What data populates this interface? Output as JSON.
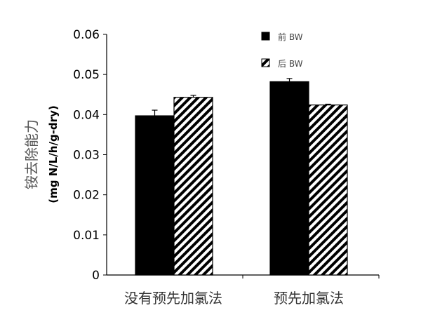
{
  "chart_data": {
    "type": "bar",
    "categories": [
      "没有预先加氯法",
      "预先加氯法"
    ],
    "series": [
      {
        "name": "前 BW",
        "values": [
          0.0397,
          0.0482
        ],
        "error": [
          0.0014,
          0.0008
        ],
        "fill": "solid",
        "color": "#000000"
      },
      {
        "name": "后 BW",
        "values": [
          0.0443,
          0.0424
        ],
        "error": [
          0.0005,
          0.0002
        ],
        "fill": "hatched",
        "color": "#000000"
      }
    ],
    "ylabel_line1": "铵去除能力",
    "ylabel_line2": "(mg N/L/h/g-dry)",
    "ylim": [
      0,
      0.06
    ],
    "yticks": [
      "0",
      "0.01",
      "0.02",
      "0.03",
      "0.04",
      "0.05",
      "0.06"
    ],
    "grid": false,
    "legend": "top-right"
  }
}
